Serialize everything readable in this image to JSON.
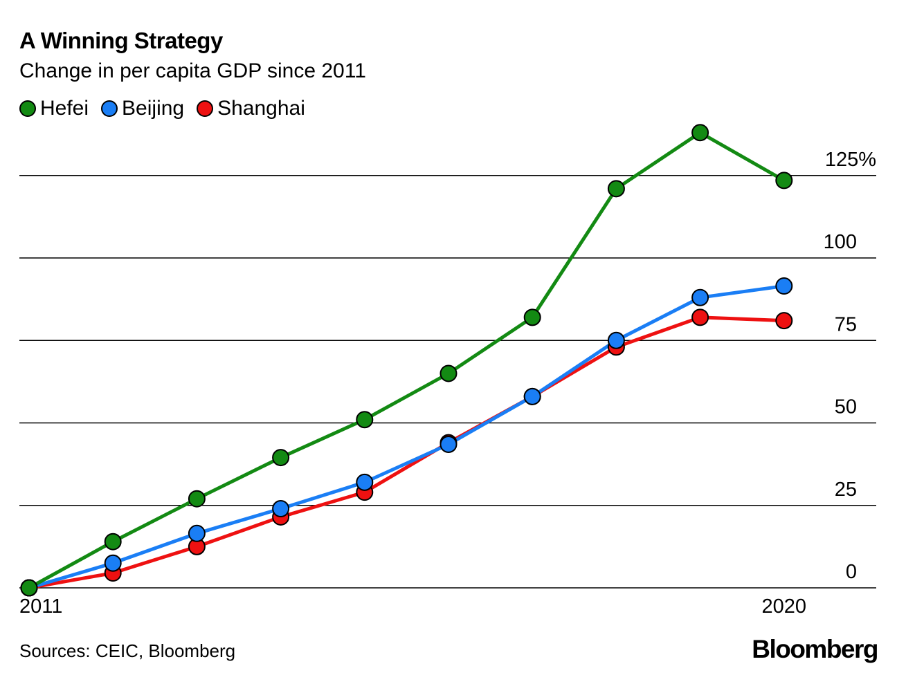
{
  "chart_data": {
    "type": "line",
    "title": "A Winning Strategy",
    "subtitle": "Change in per capita GDP since 2011",
    "x": [
      2011,
      2012,
      2013,
      2014,
      2015,
      2016,
      2017,
      2018,
      2019,
      2020
    ],
    "x_tick_labels": [
      {
        "value": 2011,
        "label": "2011"
      },
      {
        "value": 2020,
        "label": "2020"
      }
    ],
    "y_ticks": [
      {
        "value": 0,
        "label": "0"
      },
      {
        "value": 25,
        "label": "25"
      },
      {
        "value": 50,
        "label": "50"
      },
      {
        "value": 75,
        "label": "75"
      },
      {
        "value": 100,
        "label": "100"
      },
      {
        "value": 125,
        "label": "125%"
      }
    ],
    "ylim": [
      0,
      135
    ],
    "xlim": [
      2011,
      2021
    ],
    "series": [
      {
        "name": "Hefei",
        "color": "#138a13",
        "values": [
          0,
          14,
          27,
          39.5,
          51,
          65,
          82,
          121,
          138,
          123.5
        ]
      },
      {
        "name": "Beijing",
        "color": "#1a7ef5",
        "values": [
          0,
          7.5,
          16.5,
          24,
          32,
          43.5,
          58,
          75,
          88,
          91.5
        ]
      },
      {
        "name": "Shanghai",
        "color": "#ee1111",
        "values": [
          0,
          4.5,
          12.5,
          21.5,
          29,
          44,
          58,
          73,
          82,
          81
        ]
      }
    ],
    "grid": true,
    "legend_position": "top-left"
  },
  "footer": {
    "source": "Sources: CEIC, Bloomberg",
    "brand": "Bloomberg"
  }
}
